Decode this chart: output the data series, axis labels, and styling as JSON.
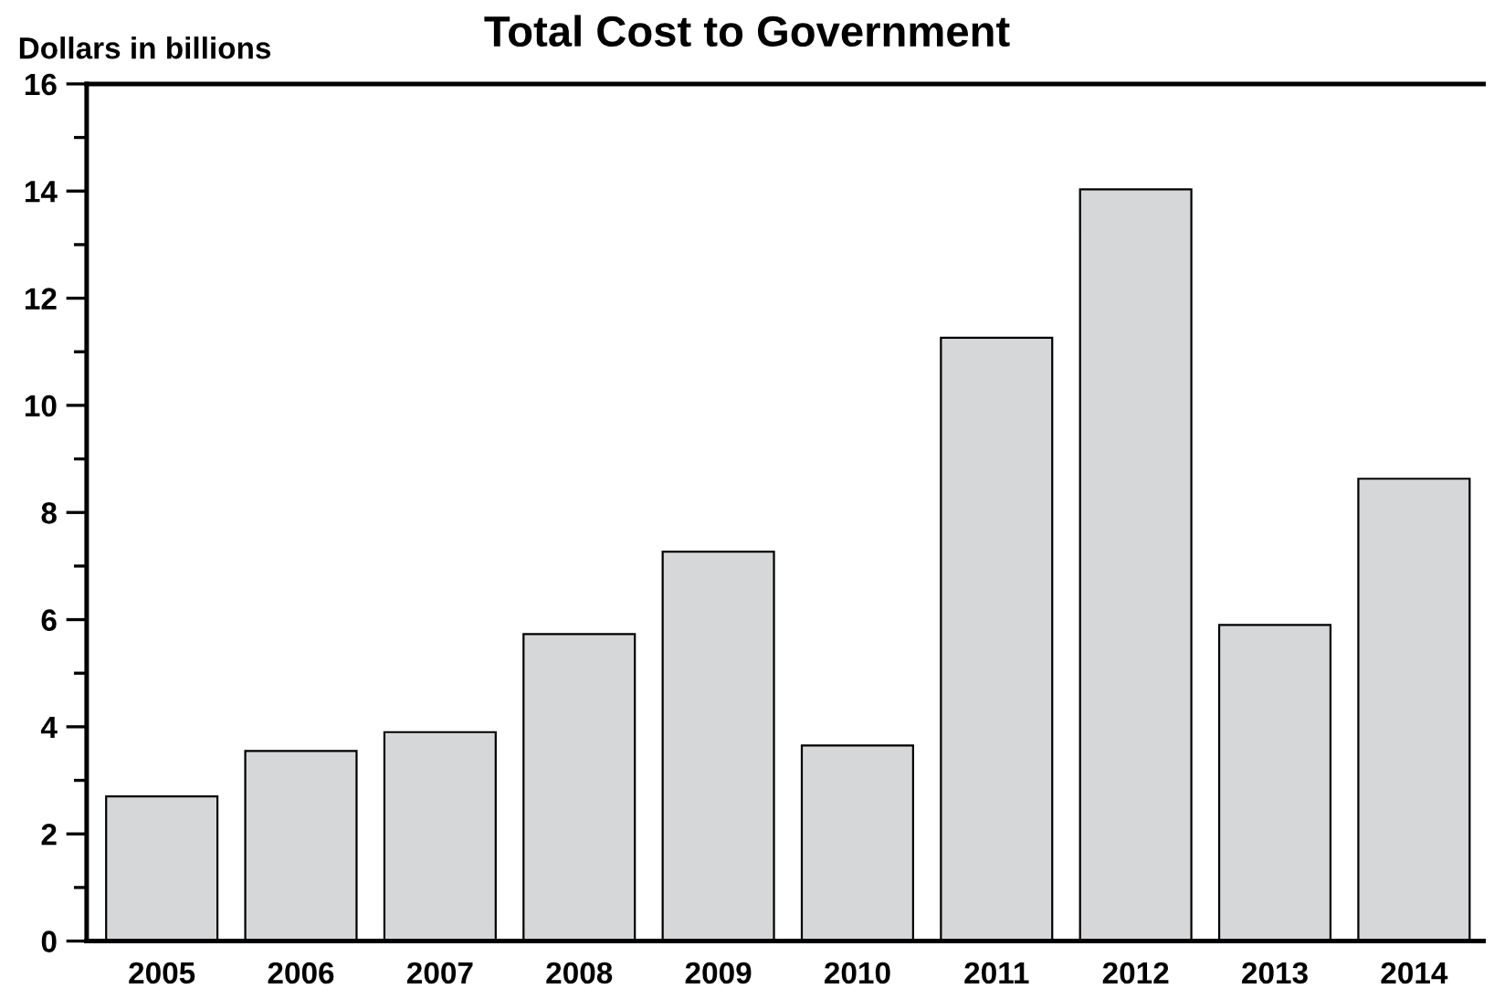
{
  "chart_data": {
    "type": "bar",
    "title": "Total Cost to Government",
    "ylabel": "Dollars in billions",
    "categories": [
      "2005",
      "2006",
      "2007",
      "2008",
      "2009",
      "2010",
      "2011",
      "2012",
      "2013",
      "2014"
    ],
    "values": [
      2.7,
      3.55,
      3.9,
      5.73,
      7.27,
      3.65,
      11.26,
      14.03,
      5.9,
      8.63
    ],
    "color": "#d6d7d9",
    "ylim": [
      0,
      16
    ],
    "yticks": [
      0,
      2,
      4,
      6,
      8,
      10,
      12,
      14,
      16
    ],
    "grid": false
  }
}
